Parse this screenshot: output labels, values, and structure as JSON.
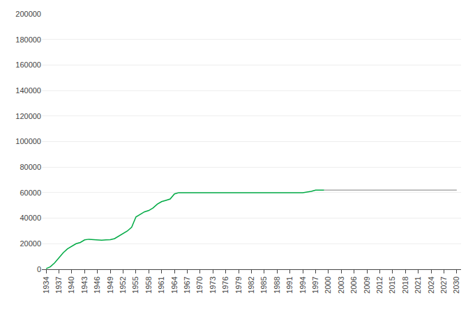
{
  "chart_data": {
    "type": "line",
    "series": [
      {
        "color": "#00aa44",
        "x": [
          1934,
          1935,
          1936,
          1937,
          1938,
          1939,
          1940,
          1941,
          1942,
          1943,
          1944,
          1945,
          1946,
          1947,
          1948,
          1949,
          1950,
          1951,
          1952,
          1953,
          1954,
          1955,
          1956,
          1957,
          1958,
          1959,
          1960,
          1961,
          1962,
          1963,
          1964,
          1965,
          1966,
          1967,
          1968,
          1969,
          1970,
          1971,
          1972,
          1973,
          1974,
          1975,
          1976,
          1977,
          1978,
          1979,
          1980,
          1981,
          1982,
          1983,
          1984,
          1985,
          1986,
          1987,
          1988,
          1989,
          1990,
          1991,
          1992,
          1993,
          1994,
          1995,
          1996,
          1997,
          1998,
          1999
        ],
        "values": [
          500,
          2000,
          5000,
          9000,
          13000,
          16000,
          18000,
          20000,
          21000,
          23000,
          23500,
          23200,
          23000,
          22800,
          23000,
          23200,
          24000,
          26000,
          28000,
          30000,
          33000,
          41000,
          43000,
          45000,
          46000,
          48000,
          51000,
          53000,
          54000,
          55000,
          59000,
          60000,
          60000,
          60000,
          60000,
          60000,
          60000,
          60000,
          60000,
          60000,
          60000,
          60000,
          60000,
          60000,
          60000,
          60000,
          60000,
          60000,
          60000,
          60000,
          60000,
          60000,
          60000,
          60000,
          60000,
          60000,
          60000,
          60000,
          60000,
          60000,
          60000,
          60500,
          61000,
          62000,
          62000,
          62000
        ]
      },
      {
        "color": "#aaaaaa",
        "x": [
          1999,
          2000,
          2001,
          2002,
          2003,
          2004,
          2005,
          2006,
          2007,
          2008,
          2009,
          2010,
          2011,
          2012,
          2013,
          2014,
          2015,
          2016,
          2017,
          2018,
          2019,
          2020,
          2021,
          2022,
          2023,
          2024,
          2025,
          2026,
          2027,
          2028,
          2029,
          2030
        ],
        "values": [
          62000,
          62000,
          62000,
          62000,
          62000,
          62000,
          62000,
          62000,
          62000,
          62000,
          62000,
          62000,
          62000,
          62000,
          62000,
          62000,
          62000,
          62000,
          62000,
          62000,
          62000,
          62000,
          62000,
          62000,
          62000,
          62000,
          62000,
          62000,
          62000,
          62000,
          62000,
          62000
        ]
      }
    ],
    "xlim": [
      1933,
      2031
    ],
    "xticks": [
      1934,
      1937,
      1940,
      1943,
      1946,
      1949,
      1952,
      1955,
      1958,
      1961,
      1964,
      1967,
      1970,
      1973,
      1976,
      1979,
      1982,
      1985,
      1988,
      1991,
      1994,
      1997,
      2000,
      2003,
      2006,
      2009,
      2012,
      2015,
      2018,
      2021,
      2024,
      2027,
      2030
    ],
    "ylim": [
      0,
      200000
    ],
    "yticks": [
      0,
      20000,
      40000,
      60000,
      80000,
      100000,
      120000,
      140000,
      160000,
      180000,
      200000
    ],
    "grid": "y"
  }
}
